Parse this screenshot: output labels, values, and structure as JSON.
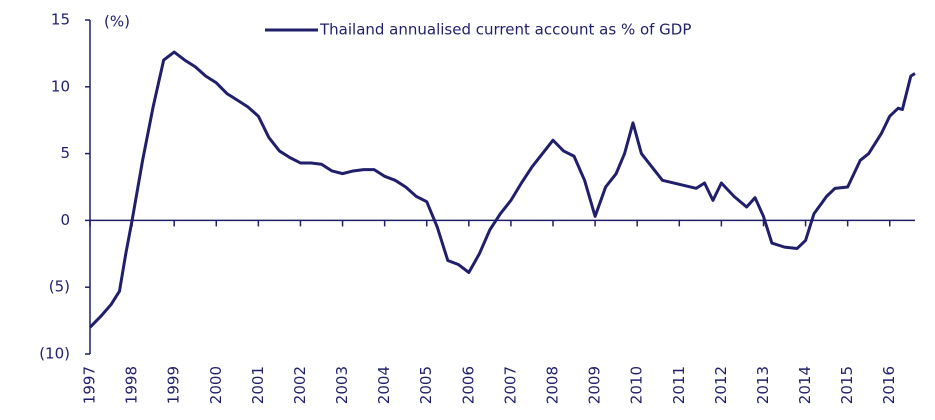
{
  "chart_data": {
    "type": "line",
    "y_label": "(%)",
    "x": [
      1997.0,
      1997.25,
      1997.5,
      1997.7,
      1997.85,
      1998.0,
      1998.25,
      1998.5,
      1998.75,
      1999.0,
      1999.25,
      1999.5,
      1999.75,
      2000.0,
      2000.25,
      2000.5,
      2000.75,
      2001.0,
      2001.25,
      2001.5,
      2001.75,
      2002.0,
      2002.25,
      2002.5,
      2002.75,
      2003.0,
      2003.25,
      2003.5,
      2003.75,
      2004.0,
      2004.25,
      2004.5,
      2004.75,
      2005.0,
      2005.25,
      2005.5,
      2005.75,
      2006.0,
      2006.25,
      2006.5,
      2006.75,
      2007.0,
      2007.25,
      2007.5,
      2007.75,
      2008.0,
      2008.25,
      2008.5,
      2008.75,
      2009.0,
      2009.25,
      2009.5,
      2009.7,
      2009.9,
      2010.1,
      2010.3,
      2010.6,
      2011.0,
      2011.4,
      2011.6,
      2011.8,
      2012.0,
      2012.3,
      2012.6,
      2012.8,
      2013.0,
      2013.2,
      2013.5,
      2013.8,
      2014.0,
      2014.2,
      2014.5,
      2014.7,
      2015.0,
      2015.3,
      2015.5,
      2015.8,
      2016.0,
      2016.2,
      2016.3,
      2016.5,
      2016.6
    ],
    "series": [
      {
        "name": "Thailand annualised current account as % of GDP",
        "color": "#1f1f6b",
        "values": [
          -8.0,
          -7.2,
          -6.3,
          -5.3,
          -2.5,
          0,
          4.5,
          8.5,
          12.0,
          12.6,
          12.0,
          11.5,
          10.8,
          10.3,
          9.5,
          9.0,
          8.5,
          7.8,
          6.2,
          5.2,
          4.7,
          4.3,
          4.3,
          4.2,
          3.7,
          3.5,
          3.7,
          3.8,
          3.8,
          3.3,
          3.0,
          2.5,
          1.8,
          1.4,
          -0.5,
          -3.0,
          -3.3,
          -3.9,
          -2.5,
          -0.7,
          0.5,
          1.5,
          2.8,
          4.0,
          5.0,
          6.0,
          5.2,
          4.8,
          3.0,
          0.3,
          2.5,
          3.5,
          5.0,
          7.3,
          5.0,
          4.2,
          3.0,
          2.7,
          2.4,
          2.8,
          1.5,
          2.8,
          1.8,
          1.0,
          1.7,
          0.3,
          -1.7,
          -2.0,
          -2.1,
          -1.5,
          0.5,
          1.8,
          2.4,
          2.5,
          4.5,
          5.0,
          6.5,
          7.8,
          8.4,
          8.3,
          10.8,
          11.0
        ]
      }
    ],
    "xlim": [
      1997,
      2016.6
    ],
    "xticks": [
      1997,
      1998,
      1999,
      2000,
      2001,
      2002,
      2003,
      2004,
      2005,
      2006,
      2007,
      2008,
      2009,
      2010,
      2011,
      2012,
      2013,
      2014,
      2015,
      2016
    ],
    "ylim": [
      -10,
      15
    ],
    "yticks": [
      {
        "value": -10,
        "label": "(10)"
      },
      {
        "value": -5,
        "label": "(5)"
      },
      0,
      5,
      10,
      15
    ],
    "legend": "top"
  }
}
